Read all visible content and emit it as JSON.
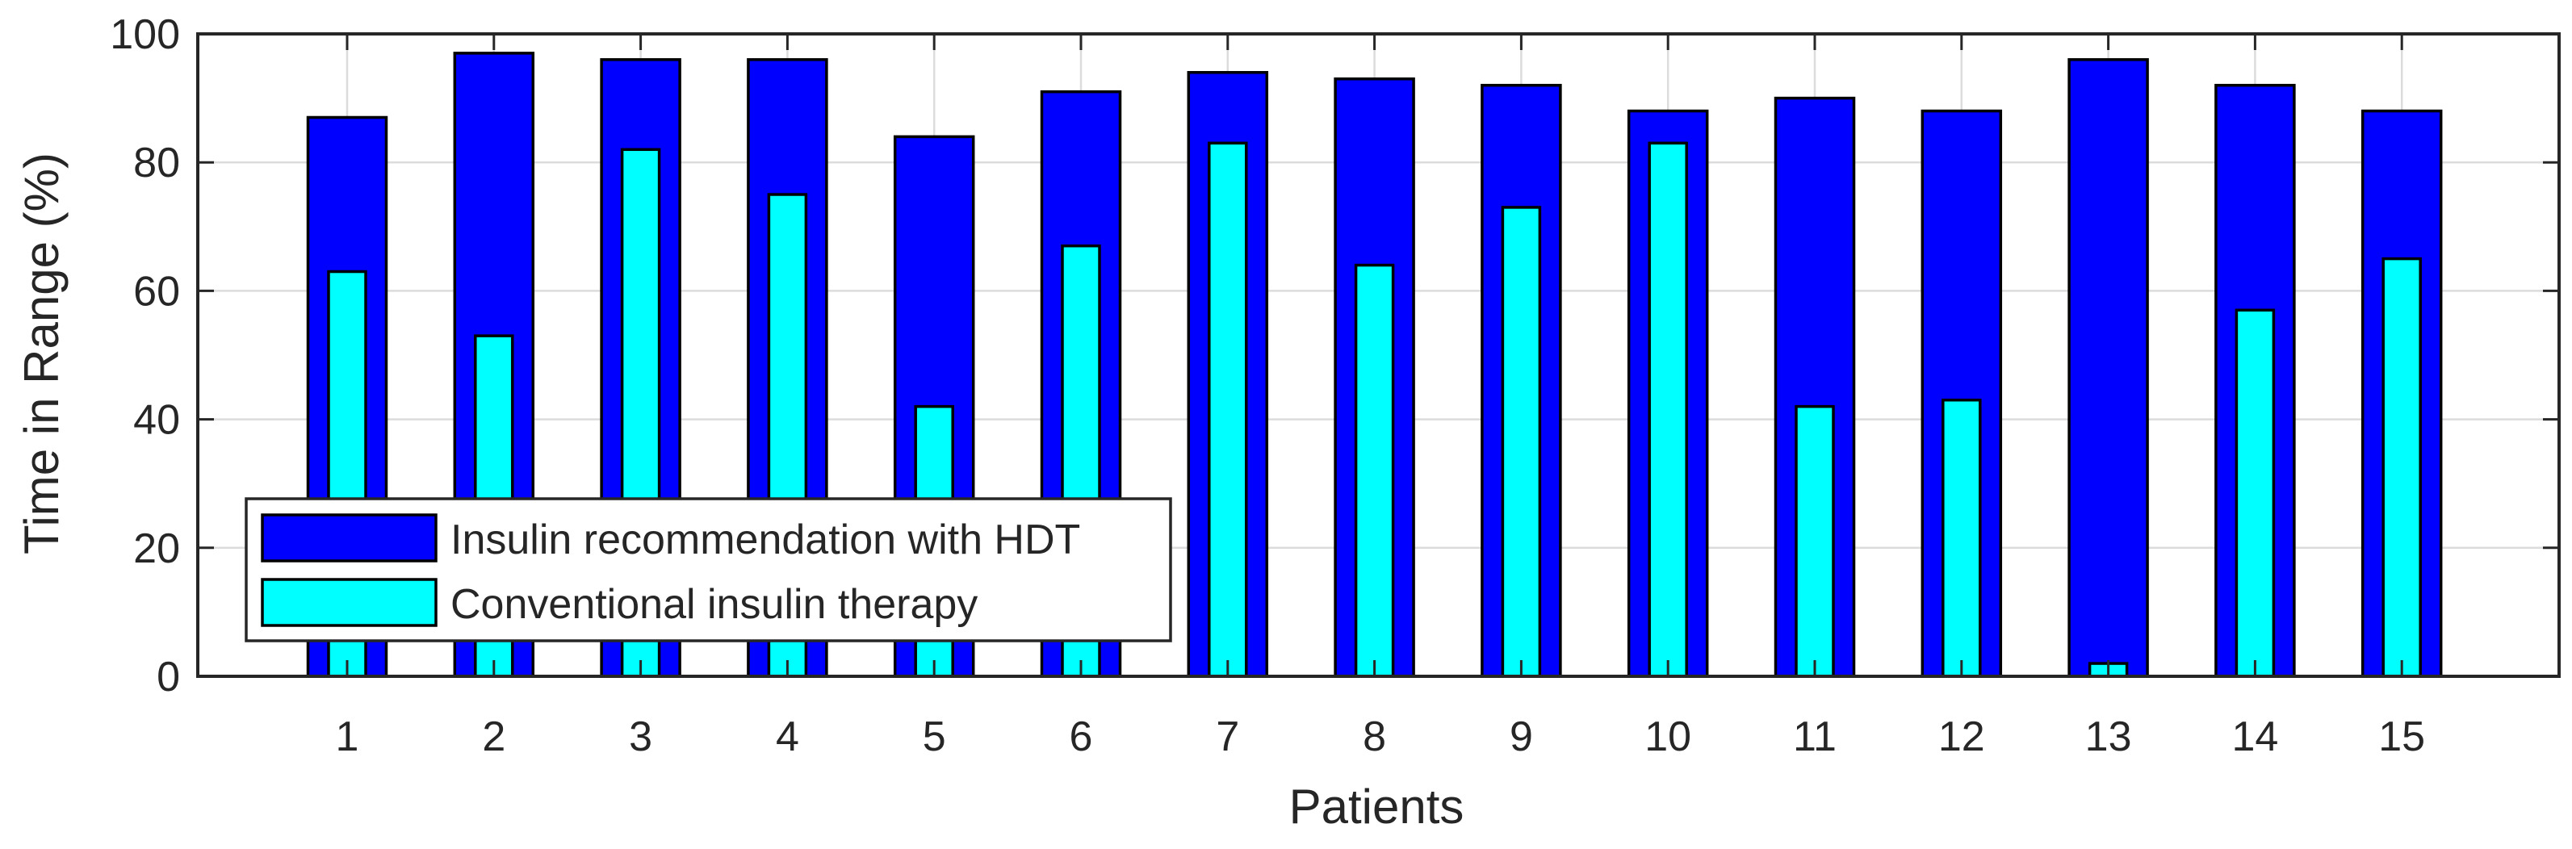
{
  "chart_data": {
    "type": "bar",
    "title": "",
    "xlabel": "Patients",
    "ylabel": "Time in Range (%)",
    "ylim": [
      0,
      100
    ],
    "yticks": [
      0,
      20,
      40,
      60,
      80,
      100
    ],
    "grid": true,
    "legend_position": "bottom-left",
    "categories": [
      "1",
      "2",
      "3",
      "4",
      "5",
      "6",
      "7",
      "8",
      "9",
      "10",
      "11",
      "12",
      "13",
      "14",
      "15"
    ],
    "series": [
      {
        "name": "Insulin recommendation with HDT",
        "color": "#0000ff",
        "values": [
          87,
          97,
          96,
          96,
          84,
          91,
          94,
          93,
          92,
          88,
          90,
          88,
          96,
          92,
          88
        ]
      },
      {
        "name": "Conventional insulin therapy",
        "color": "#00ffff",
        "values": [
          63,
          53,
          82,
          75,
          42,
          67,
          83,
          64,
          73,
          83,
          42,
          43,
          2,
          57,
          65
        ]
      }
    ]
  }
}
